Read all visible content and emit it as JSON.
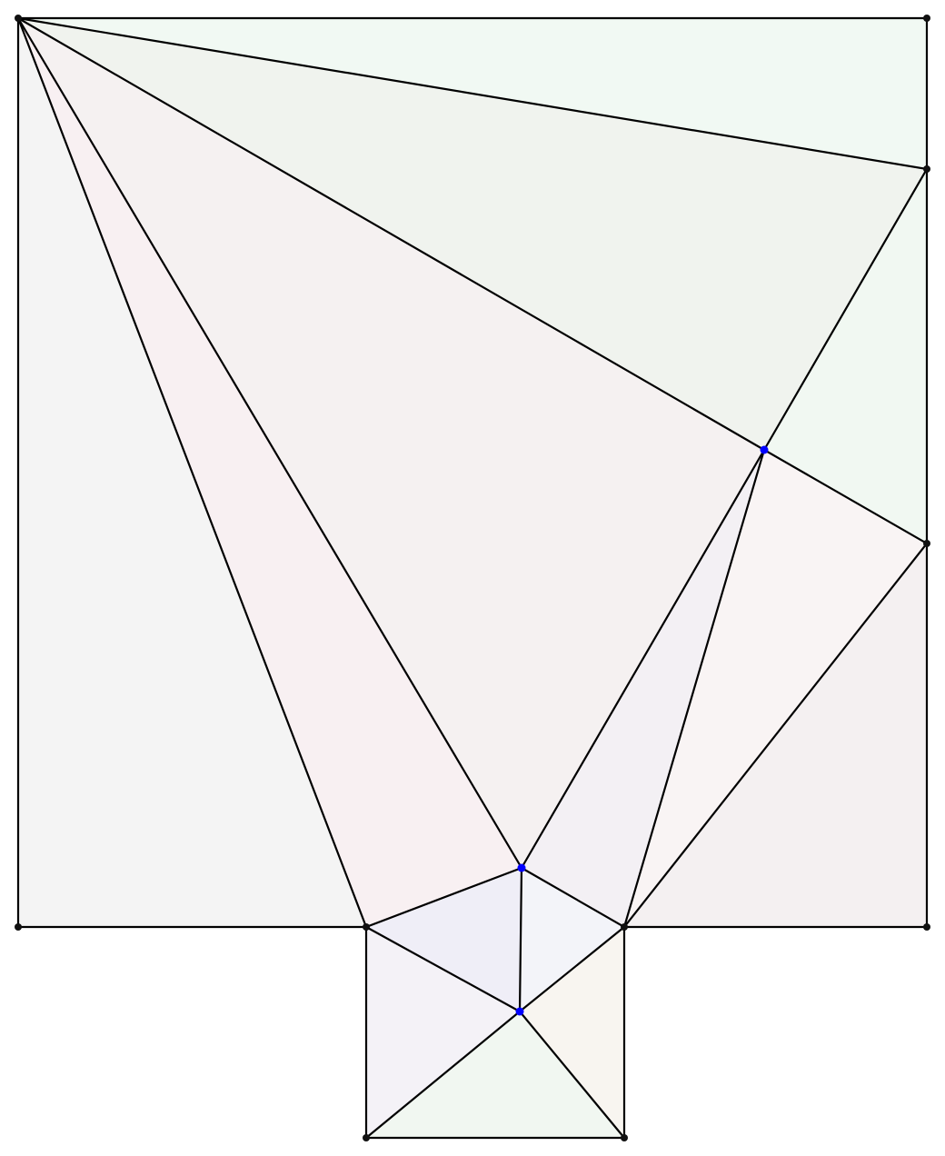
{
  "colors": {
    "background": "#ffffff",
    "edge": "#000000",
    "vertex_boundary": "#111111",
    "vertex_interior": "#0000ff"
  },
  "faces": [
    {
      "id": "f-top-right-sliver",
      "fill": "#f1f9f3"
    },
    {
      "id": "f-upper-green",
      "fill": "#f0f3ee"
    },
    {
      "id": "f-right-green",
      "fill": "#f1f8f2"
    },
    {
      "id": "f-left-gray",
      "fill": "#f4f4f4"
    },
    {
      "id": "f-pink-left",
      "fill": "#f8f0f2"
    },
    {
      "id": "f-center-large",
      "fill": "#f5f1f1"
    },
    {
      "id": "f-lavender-mid",
      "fill": "#f3f0f4"
    },
    {
      "id": "f-right-pink",
      "fill": "#f9f4f4"
    },
    {
      "id": "f-right-bottom",
      "fill": "#f4f0f1"
    },
    {
      "id": "f-hex-left",
      "fill": "#efeef7"
    },
    {
      "id": "f-hex-right",
      "fill": "#f3f4f9"
    },
    {
      "id": "f-small-left",
      "fill": "#f4f2f7"
    },
    {
      "id": "f-small-right",
      "fill": "#f8f5f0"
    },
    {
      "id": "f-small-bottom",
      "fill": "#f1f7f1"
    }
  ],
  "vertices": [
    {
      "id": "v-top-left",
      "kind": "boundary"
    },
    {
      "id": "v-top-right",
      "kind": "boundary"
    },
    {
      "id": "v-right-upper",
      "kind": "boundary"
    },
    {
      "id": "v-right-middle",
      "kind": "boundary"
    },
    {
      "id": "v-bottom-right",
      "kind": "boundary"
    },
    {
      "id": "v-bottom-left",
      "kind": "boundary"
    },
    {
      "id": "v-notch-left",
      "kind": "boundary"
    },
    {
      "id": "v-notch-right",
      "kind": "boundary"
    },
    {
      "id": "v-base-left",
      "kind": "boundary"
    },
    {
      "id": "v-base-right",
      "kind": "boundary"
    },
    {
      "id": "v-interior-right",
      "kind": "interior"
    },
    {
      "id": "v-interior-upper",
      "kind": "interior"
    },
    {
      "id": "v-interior-lower",
      "kind": "interior"
    }
  ]
}
